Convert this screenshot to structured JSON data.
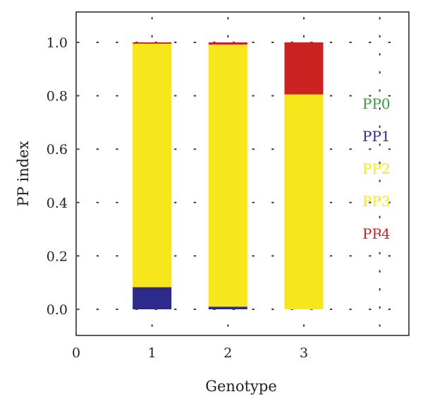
{
  "chart_data": {
    "type": "bar",
    "stacked": true,
    "xlabel": "Genotype",
    "ylabel": "PP index",
    "x_ticks": [
      "0",
      "1",
      "2",
      "3"
    ],
    "y_ticks": [
      "0.0",
      "0.2",
      "0.4",
      "0.6",
      "0.8",
      "1.0"
    ],
    "xlim": [
      0,
      4
    ],
    "ylim": [
      -0.1,
      1.1
    ],
    "grid": "dotted",
    "legend_position": "right",
    "categories": [
      1,
      2,
      3
    ],
    "series": [
      {
        "name": "PP0",
        "color": "#3a9a3a",
        "values": [
          0,
          0,
          0
        ]
      },
      {
        "name": "PP1",
        "color": "#2e2a8c",
        "values": [
          0.083,
          0.01,
          0
        ]
      },
      {
        "name": "PP2",
        "color": "#f7e61c",
        "values": [
          0,
          0,
          0
        ]
      },
      {
        "name": "PP3",
        "color": "#f7e61c",
        "values": [
          0.912,
          0.982,
          0.805
        ]
      },
      {
        "name": "PP4",
        "color": "#cc2222",
        "values": [
          0.005,
          0.008,
          0.195
        ]
      }
    ]
  }
}
